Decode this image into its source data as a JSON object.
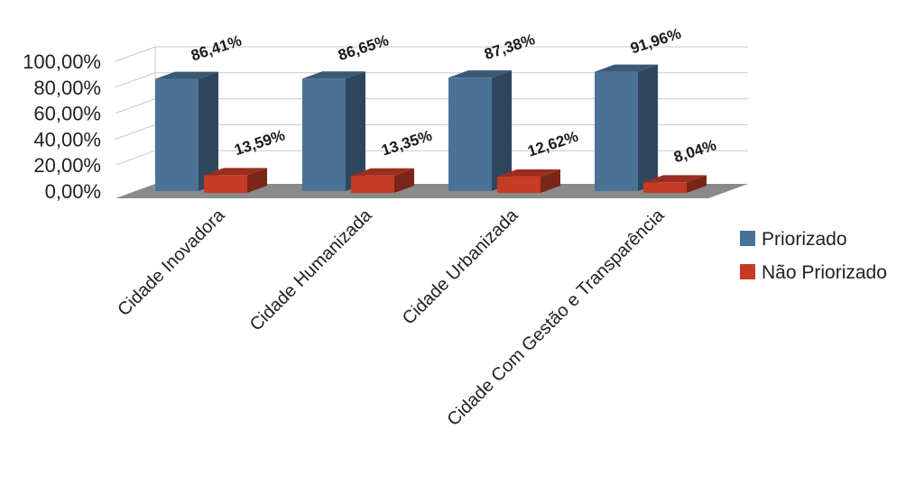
{
  "chart_data": {
    "type": "bar",
    "style": "3d-column",
    "categories": [
      "Cidade Inovadora",
      "Cidade Humanizada",
      "Cidade Urbanizada",
      "Cidade Com Gestão e Transparência"
    ],
    "series": [
      {
        "name": "Priorizado",
        "values": [
          86.41,
          86.65,
          87.38,
          91.96
        ],
        "labels": [
          "86,41%",
          "86,65%",
          "87,38%",
          "91,96%"
        ]
      },
      {
        "name": "Não Priorizado",
        "values": [
          13.59,
          13.35,
          12.62,
          8.04
        ],
        "labels": [
          "13,59%",
          "13,35%",
          "12,62%",
          "8,04%"
        ]
      }
    ],
    "yticks": [
      "0,00%",
      "20,00%",
      "40,00%",
      "60,00%",
      "80,00%",
      "100,00%"
    ],
    "ylim": [
      0,
      100
    ],
    "grid": true,
    "legend_position": "right",
    "colors": {
      "Priorizado": "#4a7296",
      "Não Priorizado": "#c63a26"
    },
    "title": "",
    "xlabel": "",
    "ylabel": ""
  }
}
